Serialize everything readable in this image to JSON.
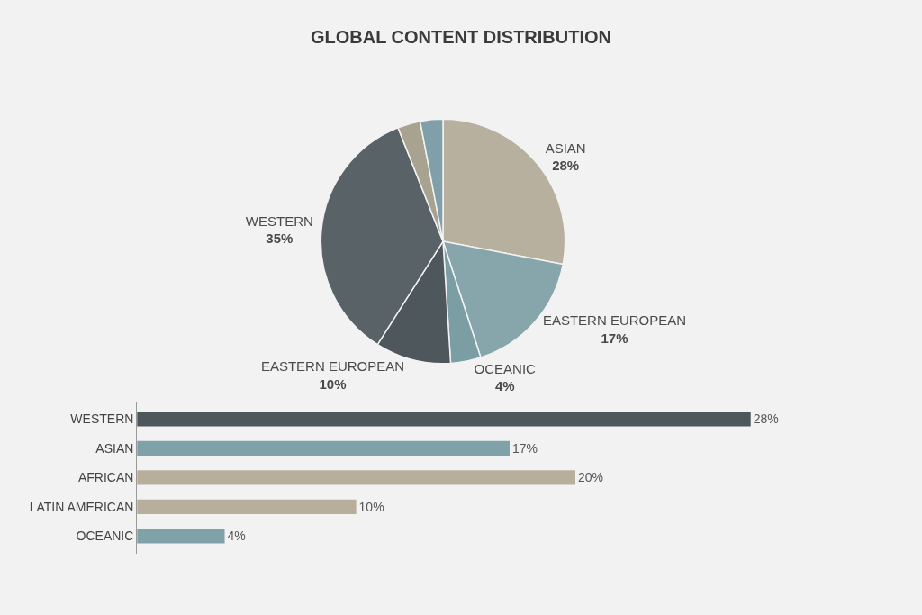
{
  "chart_data": [
    {
      "type": "pie",
      "title": "GLOBAL CONTENT DISTRIBUTION",
      "categories": [
        "ASIAN",
        "EASTERN EUROPEAN",
        "OCEANIC",
        "EASTERN EUROPEAN",
        "WESTERN",
        null,
        null
      ],
      "values": [
        28,
        17,
        4,
        10,
        35,
        3,
        3
      ],
      "value_labels": [
        "28%",
        "17%",
        "4%",
        "10%",
        "35%",
        null,
        null
      ],
      "colors": [
        "#b8b09e",
        "#86a6ac",
        "#7b9ea5",
        "#4e575c",
        "#596266",
        "#a8a290",
        "#7fa0a8"
      ]
    },
    {
      "type": "bar",
      "orientation": "horizontal",
      "categories": [
        "WESTERN",
        "ASIAN",
        "AFRICAN",
        "LATIN AMERICAN",
        "OCEANIC"
      ],
      "values": [
        28,
        17,
        20,
        10,
        4
      ],
      "value_labels": [
        "28%",
        "17%",
        "20%",
        "10%",
        "4%"
      ],
      "colors": [
        "#4e575c",
        "#7fa1a8",
        "#b7ae9c",
        "#b7ae9c",
        "#7fa1a8"
      ],
      "tick_labels": "y"
    }
  ]
}
